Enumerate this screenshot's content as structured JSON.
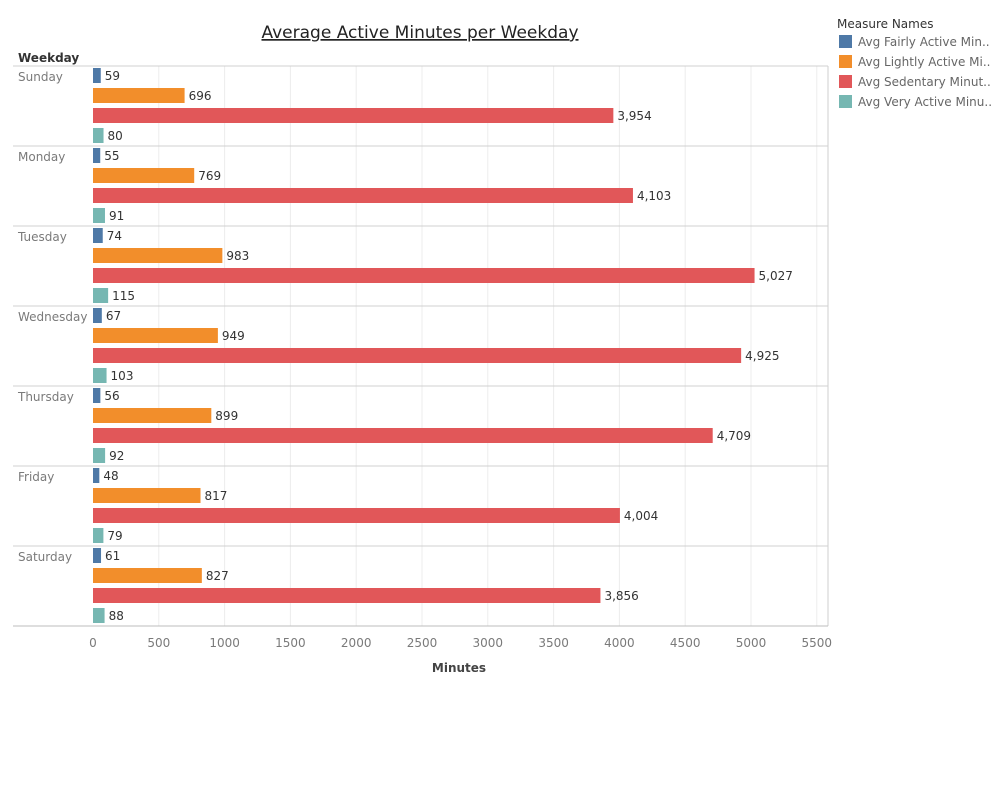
{
  "chart_data": {
    "type": "bar",
    "orientation": "horizontal",
    "title": "Average Active Minutes per Weekday",
    "row_header": "Weekday",
    "xlabel": "Minutes",
    "xlim": [
      0,
      5600
    ],
    "x_ticks": [
      "0",
      "500",
      "1000",
      "1500",
      "2000",
      "2500",
      "3000",
      "3500",
      "4000",
      "4500",
      "5000",
      "5500"
    ],
    "x_tick_values": [
      0,
      500,
      1000,
      1500,
      2000,
      2500,
      3000,
      3500,
      4000,
      4500,
      5000,
      5500
    ],
    "grid": "vertical",
    "categories": [
      "Sunday",
      "Monday",
      "Tuesday",
      "Wednesday",
      "Thursday",
      "Friday",
      "Saturday"
    ],
    "legend": {
      "title": "Measure Names",
      "position": "top-right"
    },
    "series": [
      {
        "name": "Avg Fairly Active Min..",
        "color": "#4e79a7",
        "values": [
          59,
          55,
          74,
          67,
          56,
          48,
          61
        ],
        "labels": [
          "59",
          "55",
          "74",
          "67",
          "56",
          "48",
          "61"
        ]
      },
      {
        "name": "Avg Lightly Active Mi..",
        "color": "#f28e2b",
        "values": [
          696,
          769,
          983,
          949,
          899,
          817,
          827
        ],
        "labels": [
          "696",
          "769",
          "983",
          "949",
          "899",
          "817",
          "827"
        ]
      },
      {
        "name": "Avg Sedentary Minut..",
        "color": "#e15759",
        "values": [
          3954,
          4103,
          5027,
          4925,
          4709,
          4004,
          3856
        ],
        "labels": [
          "3,954",
          "4,103",
          "5,027",
          "4,925",
          "4,709",
          "4,004",
          "3,856"
        ]
      },
      {
        "name": "Avg Very Active Minu..",
        "color": "#76b7b2",
        "values": [
          80,
          91,
          115,
          103,
          92,
          79,
          88
        ],
        "labels": [
          "80",
          "91",
          "115",
          "103",
          "92",
          "79",
          "88"
        ]
      }
    ]
  }
}
